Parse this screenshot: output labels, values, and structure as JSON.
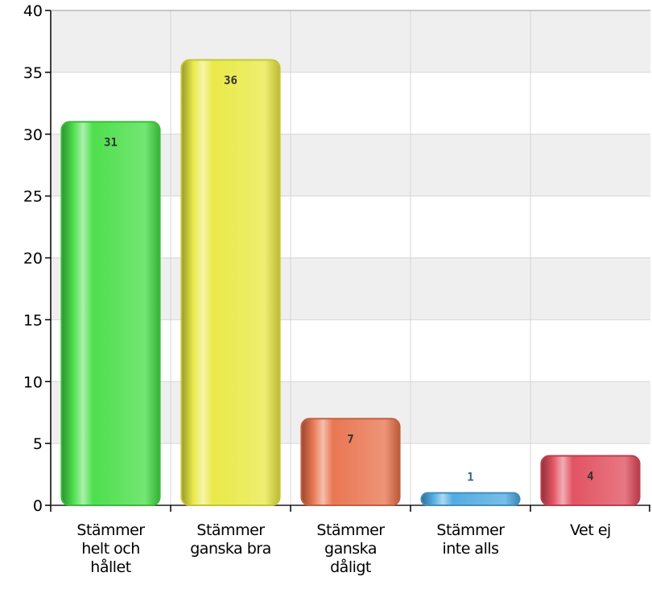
{
  "chart_data": {
    "type": "bar",
    "categories": [
      "Stämmer\nhelt och\nhållet",
      "Stämmer\nganska bra",
      "Stämmer\nganska\ndåligt",
      "Stämmer\ninte alls",
      "Vet ej"
    ],
    "values": [
      31,
      36,
      7,
      1,
      4
    ],
    "data_labels": [
      "31",
      "36",
      "7",
      "1",
      "4"
    ],
    "yticks": [
      "0",
      "5",
      "10",
      "15",
      "20",
      "25",
      "30",
      "35",
      "40"
    ],
    "ylim": [
      0,
      40
    ],
    "grid": true,
    "legend": "none",
    "colors": [
      "#44dd44",
      "#e8e840",
      "#e8704a",
      "#4aa8e0",
      "#e04a5a"
    ],
    "label_colors": [
      "#333333",
      "#333333",
      "#333333",
      "#336699",
      "#333333"
    ]
  }
}
